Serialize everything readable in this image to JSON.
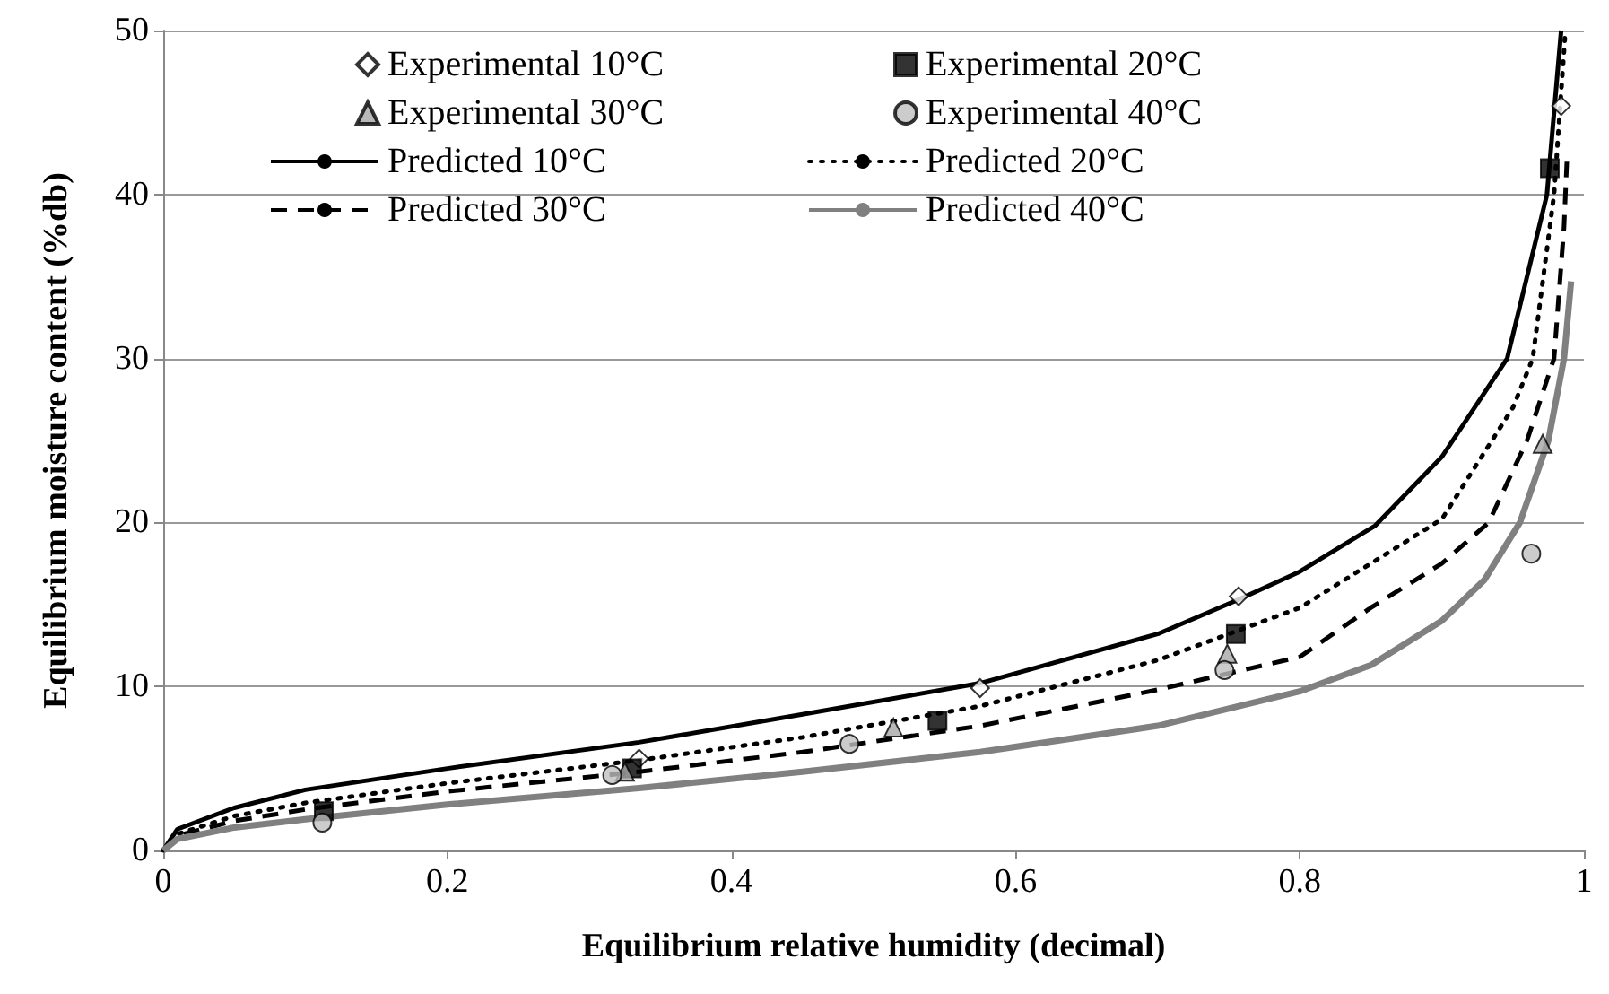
{
  "chart_data": {
    "type": "scatter",
    "xlabel": "Equilibrium relative humidity (decimal)",
    "ylabel": "Equilibrium moisture content (%db)",
    "xlim": [
      0,
      1
    ],
    "xticks": [
      0,
      0.2,
      0.4,
      0.6,
      0.8,
      1
    ],
    "ylim": [
      0,
      50
    ],
    "yticks": [
      0,
      10,
      20,
      30,
      40,
      50
    ],
    "grid": "y",
    "legend": "top",
    "series": [
      {
        "name": "Experimental 10°C",
        "marker": "diamond",
        "color": "#ffffff",
        "x": [
          0.335,
          0.575,
          0.757,
          0.984
        ],
        "values": [
          5.6,
          9.9,
          15.5,
          45.4
        ]
      },
      {
        "name": "Experimental 20°C",
        "marker": "square",
        "color": "#000000",
        "x": [
          0.113,
          0.33,
          0.545,
          0.755,
          0.976
        ],
        "values": [
          2.4,
          5.0,
          7.9,
          13.2,
          41.6
        ]
      },
      {
        "name": "Experimental 30°C",
        "marker": "triangle",
        "color": "#a6a6a6",
        "x": [
          0.325,
          0.514,
          0.749,
          0.971
        ],
        "values": [
          4.8,
          7.5,
          12.0,
          24.8
        ]
      },
      {
        "name": "Experimental 40°C",
        "marker": "circle",
        "color": "#bfbfbf",
        "x": [
          0.112,
          0.316,
          0.483,
          0.747,
          0.963
        ],
        "values": [
          1.7,
          4.6,
          6.5,
          11.0,
          18.1
        ]
      },
      {
        "name": "Predicted 10°C",
        "type": "line",
        "marker": "none",
        "line_style": "solid",
        "color": "#000000",
        "x": [
          0,
          0.01,
          0.05,
          0.1,
          0.2,
          0.335,
          0.45,
          0.575,
          0.7,
          0.757,
          0.8,
          0.853,
          0.9,
          0.946,
          0.974,
          0.984
        ],
        "values": [
          0,
          1.3,
          2.6,
          3.7,
          5.0,
          6.6,
          8.3,
          10.2,
          13.2,
          15.3,
          17.0,
          19.8,
          24,
          30,
          40,
          50
        ]
      },
      {
        "name": "Predicted 20°C",
        "type": "line",
        "marker": "none",
        "line_style": "dotted",
        "color": "#000000",
        "x": [
          0,
          0.01,
          0.05,
          0.1,
          0.2,
          0.335,
          0.45,
          0.575,
          0.7,
          0.8,
          0.9,
          0.95,
          0.964,
          0.979,
          0.987
        ],
        "values": [
          0,
          1.0,
          2.1,
          2.9,
          4.1,
          5.5,
          6.9,
          8.8,
          11.6,
          14.8,
          20.2,
          27,
          30,
          40,
          50
        ]
      },
      {
        "name": "Predicted 30°C",
        "type": "line",
        "marker": "none",
        "line_style": "dashed",
        "color": "#000000",
        "x": [
          0,
          0.01,
          0.05,
          0.1,
          0.2,
          0.335,
          0.45,
          0.575,
          0.7,
          0.8,
          0.85,
          0.9,
          0.933,
          0.96,
          0.979,
          0.986,
          0.988
        ],
        "values": [
          0,
          0.9,
          1.8,
          2.5,
          3.6,
          4.8,
          6.0,
          7.6,
          9.8,
          11.8,
          14.8,
          17.5,
          20,
          25,
          30,
          38,
          42
        ]
      },
      {
        "name": "Predicted 40°C",
        "type": "line",
        "marker": "none",
        "line_style": "solid",
        "color": "#808080",
        "x": [
          0,
          0.01,
          0.05,
          0.1,
          0.2,
          0.335,
          0.45,
          0.575,
          0.7,
          0.8,
          0.85,
          0.9,
          0.93,
          0.955,
          0.975,
          0.986,
          0.991
        ],
        "values": [
          0,
          0.7,
          1.4,
          1.9,
          2.8,
          3.8,
          4.8,
          6.0,
          7.6,
          9.7,
          11.3,
          14,
          16.5,
          20,
          25,
          30,
          34.7
        ]
      }
    ]
  }
}
